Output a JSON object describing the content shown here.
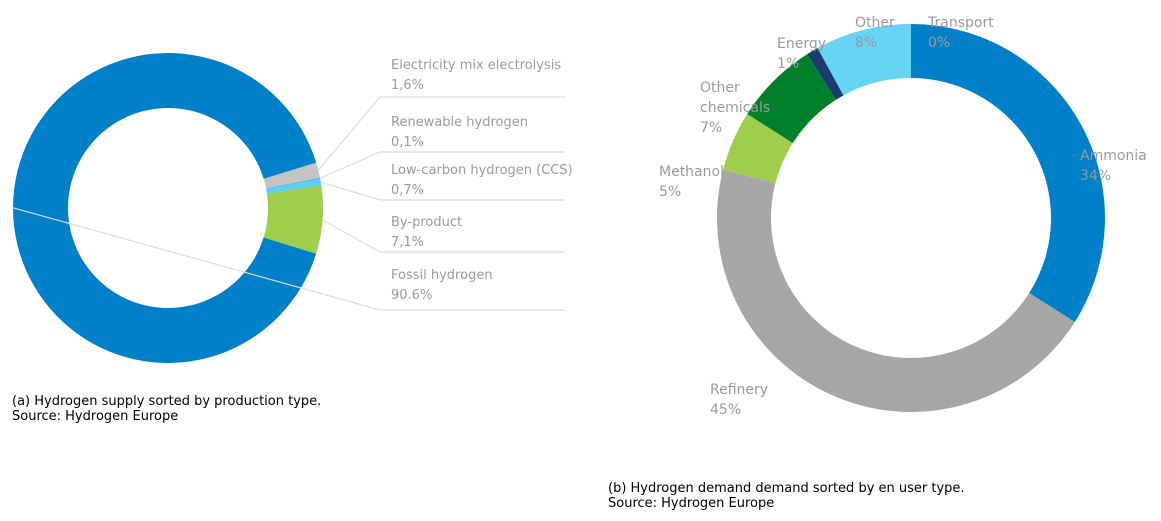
{
  "chart_data": [
    {
      "type": "donut",
      "categories": [
        "Electricity mix electrolysis",
        "Renewable hydrogen",
        "Low-carbon hydrogen (CCS)",
        "By-product",
        "Fossil hydrogen"
      ],
      "values": [
        1.6,
        0.1,
        0.7,
        7.1,
        90.6
      ],
      "value_labels": [
        "1,6%",
        "0,1%",
        "0,7%",
        "7,1%",
        "90.6%"
      ],
      "colors": [
        "#c4c4c4",
        "#2fb6e6",
        "#5fcdf2",
        "#9fcd4c",
        "#0080c8"
      ],
      "caption": "(a) Hydrogen supply sorted by production type.",
      "source": "Source: Hydrogen Europe"
    },
    {
      "type": "donut",
      "categories": [
        "Ammonia",
        "Refinery",
        "Methanol",
        "Other chemicals",
        "Energy",
        "Other",
        "Transport"
      ],
      "values": [
        34,
        45,
        5,
        7,
        1,
        8,
        0
      ],
      "value_labels": [
        "34%",
        "45%",
        "5%",
        "7%",
        "1%",
        "8%",
        "0%"
      ],
      "colors": [
        "#0080c8",
        "#a6a6a6",
        "#9fcd4c",
        "#00802b",
        "#1a3d6e",
        "#66d4f5",
        "#2a9fd8"
      ],
      "caption": "(b) Hydrogen demand demand sorted by en user type.",
      "source": "Source: Hydrogen Europe"
    }
  ]
}
